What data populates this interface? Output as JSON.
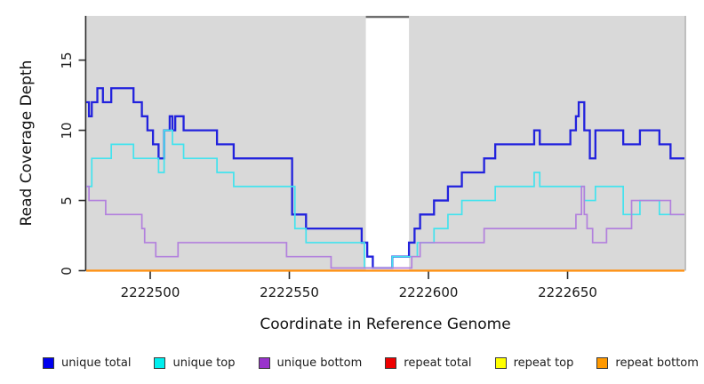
{
  "chart_data": {
    "type": "line",
    "subtype": "step",
    "title": "",
    "xlabel": "Coordinate in Reference Genome",
    "ylabel": "Read Coverage Depth",
    "x_range": [
      2222477,
      2222692
    ],
    "y_range": [
      0,
      18.15
    ],
    "grid": "off",
    "legend_position": "bottom",
    "x_ticks": [
      {
        "value": 2222500,
        "label": "2222500"
      },
      {
        "value": 2222550,
        "label": "2222550"
      },
      {
        "value": 2222600,
        "label": "2222600"
      },
      {
        "value": 2222650,
        "label": "2222650"
      }
    ],
    "y_ticks": [
      {
        "value": 0,
        "label": "0"
      },
      {
        "value": 5,
        "label": "5"
      },
      {
        "value": 10,
        "label": "10"
      },
      {
        "value": 15,
        "label": "15"
      }
    ],
    "colors": {
      "panel_bg": "#d9d9d9",
      "gap_fill": "#ffffff",
      "gap_border": "#6f6f6f",
      "axis": "#2b2b2b",
      "panel_right_shade": "#bfbfbf"
    },
    "gap_region": {
      "x_start": 2222577.5,
      "x_end": 2222593
    },
    "series": [
      {
        "name": "unique total",
        "group": "unique",
        "color": "#2222dd",
        "width": 2.3,
        "points": [
          [
            2222477,
            12
          ],
          [
            2222478,
            11
          ],
          [
            2222479,
            12
          ],
          [
            2222481,
            13
          ],
          [
            2222483,
            12
          ],
          [
            2222486,
            13
          ],
          [
            2222494,
            12
          ],
          [
            2222497,
            11
          ],
          [
            2222499,
            10
          ],
          [
            2222501,
            9
          ],
          [
            2222503,
            8
          ],
          [
            2222505,
            10
          ],
          [
            2222507,
            11
          ],
          [
            2222508,
            10
          ],
          [
            2222509,
            11
          ],
          [
            2222512,
            10
          ],
          [
            2222524,
            9
          ],
          [
            2222530,
            8
          ],
          [
            2222551,
            4
          ],
          [
            2222556,
            3
          ],
          [
            2222576,
            2
          ],
          [
            2222578,
            1
          ],
          [
            2222580,
            0
          ],
          [
            2222587,
            1
          ],
          [
            2222593,
            2
          ],
          [
            2222595,
            3
          ],
          [
            2222597,
            4
          ],
          [
            2222602,
            5
          ],
          [
            2222607,
            6
          ],
          [
            2222612,
            7
          ],
          [
            2222620,
            8
          ],
          [
            2222624,
            9
          ],
          [
            2222638,
            10
          ],
          [
            2222640,
            9
          ],
          [
            2222651,
            10
          ],
          [
            2222653,
            11
          ],
          [
            2222654,
            12
          ],
          [
            2222656,
            10
          ],
          [
            2222658,
            8
          ],
          [
            2222660,
            10
          ],
          [
            2222670,
            9
          ],
          [
            2222676,
            10
          ],
          [
            2222683,
            9
          ],
          [
            2222687,
            8
          ]
        ]
      },
      {
        "name": "unique top",
        "group": "unique",
        "color": "#42e3ee",
        "width": 1.7,
        "points": [
          [
            2222477,
            6
          ],
          [
            2222479,
            8
          ],
          [
            2222486,
            9
          ],
          [
            2222494,
            8
          ],
          [
            2222503,
            7
          ],
          [
            2222505,
            10
          ],
          [
            2222508,
            9
          ],
          [
            2222512,
            8
          ],
          [
            2222524,
            7
          ],
          [
            2222530,
            6
          ],
          [
            2222552,
            3
          ],
          [
            2222556,
            2
          ],
          [
            2222577,
            0
          ],
          [
            2222587,
            1
          ],
          [
            2222596,
            2
          ],
          [
            2222602,
            3
          ],
          [
            2222607,
            4
          ],
          [
            2222612,
            5
          ],
          [
            2222624,
            6
          ],
          [
            2222638,
            7
          ],
          [
            2222640,
            6
          ],
          [
            2222656,
            5
          ],
          [
            2222660,
            6
          ],
          [
            2222670,
            4
          ],
          [
            2222676,
            5
          ],
          [
            2222683,
            4
          ]
        ]
      },
      {
        "name": "unique bottom",
        "group": "unique",
        "color": "#b280dd",
        "width": 1.7,
        "points": [
          [
            2222477,
            6
          ],
          [
            2222478,
            5
          ],
          [
            2222484,
            4
          ],
          [
            2222497,
            3
          ],
          [
            2222498,
            2
          ],
          [
            2222502,
            1
          ],
          [
            2222510,
            2
          ],
          [
            2222549,
            1
          ],
          [
            2222565,
            0
          ],
          [
            2222594,
            1
          ],
          [
            2222597,
            2
          ],
          [
            2222620,
            3
          ],
          [
            2222653,
            4
          ],
          [
            2222655,
            6
          ],
          [
            2222656,
            4
          ],
          [
            2222657,
            3
          ],
          [
            2222659,
            2
          ],
          [
            2222664,
            3
          ],
          [
            2222673,
            5
          ],
          [
            2222687,
            4
          ]
        ]
      },
      {
        "name": "repeat total",
        "group": "repeat",
        "color": "#dd1111",
        "width": 1.5,
        "points": [
          [
            2222477,
            0
          ]
        ]
      },
      {
        "name": "repeat top",
        "group": "repeat",
        "color": "#f2f20d",
        "width": 1.5,
        "points": [
          [
            2222477,
            0
          ]
        ]
      },
      {
        "name": "repeat bottom",
        "group": "repeat",
        "color": "#ff9010",
        "width": 2.3,
        "points": [
          [
            2222477,
            0
          ]
        ]
      }
    ]
  },
  "legend": {
    "items": [
      {
        "label": "unique total",
        "color": "#0000ee"
      },
      {
        "label": "unique top",
        "color": "#00eeee"
      },
      {
        "label": "unique bottom",
        "color": "#9933cc"
      },
      {
        "label": "repeat total",
        "color": "#ee0000"
      },
      {
        "label": "repeat top",
        "color": "#ffff00"
      },
      {
        "label": "repeat bottom",
        "color": "#ff9900"
      }
    ]
  }
}
